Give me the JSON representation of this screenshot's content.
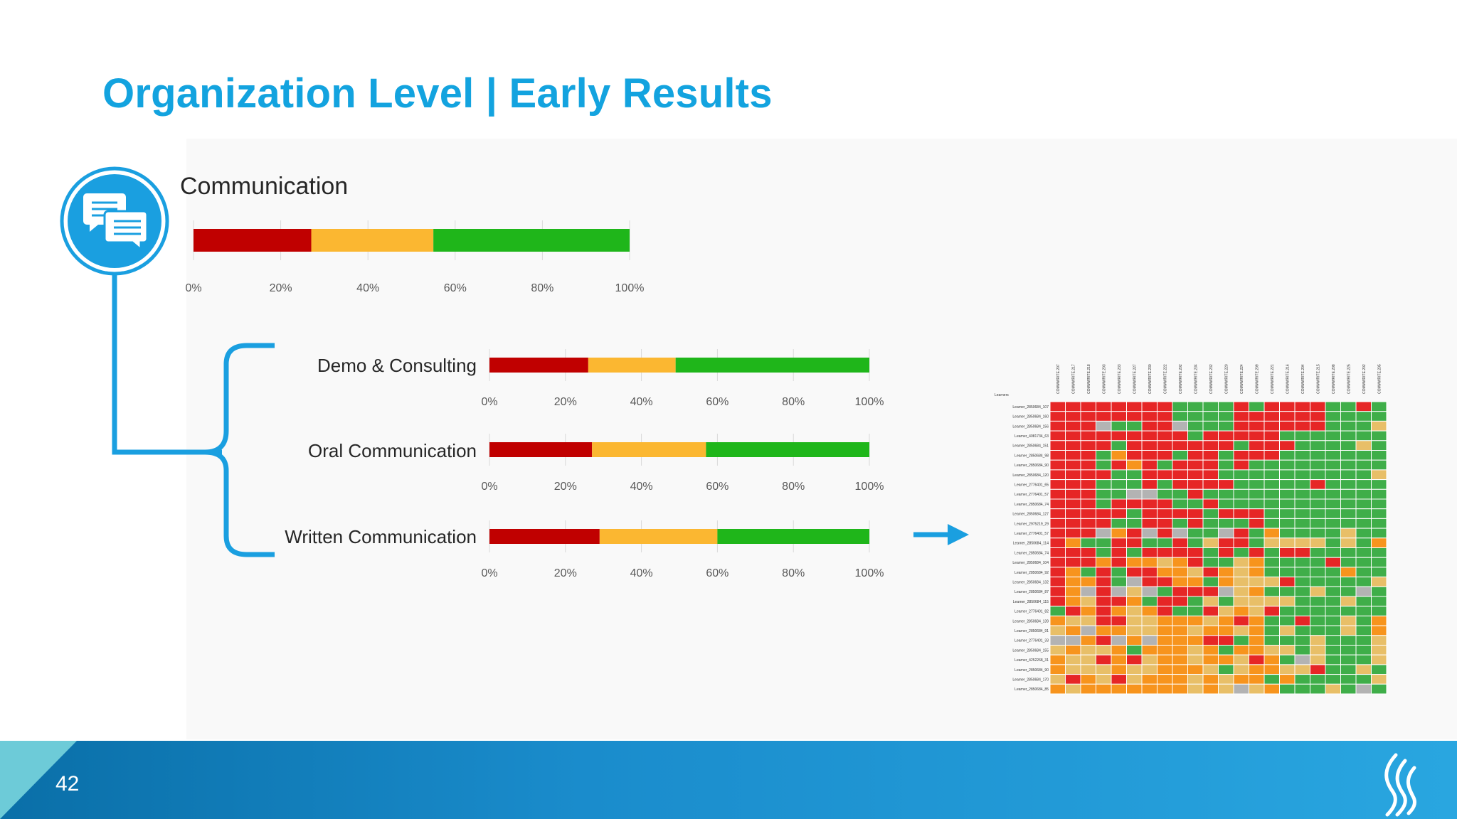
{
  "slide": {
    "title": "Organization Level | Early Results",
    "page_number": "42",
    "colors": {
      "title": "#13a3df",
      "red": "#c00000",
      "amber": "#fbb731",
      "green": "#1fb61a",
      "accent": "#1a9fe0"
    }
  },
  "icons": {
    "communication": "chat-bubbles-icon",
    "arrow": "right-arrow-icon",
    "logo": "flame-logo-icon"
  },
  "chart_data": [
    {
      "type": "bar",
      "orientation": "horizontal-stacked",
      "title": "Communication",
      "series": [
        {
          "name": "red",
          "values": [
            27
          ]
        },
        {
          "name": "amber",
          "values": [
            28
          ]
        },
        {
          "name": "green",
          "values": [
            45
          ]
        }
      ],
      "xlim": [
        0,
        100
      ],
      "xticks": [
        "0%",
        "20%",
        "40%",
        "60%",
        "80%",
        "100%"
      ]
    },
    {
      "type": "bar",
      "orientation": "horizontal-stacked",
      "title": "Demo & Consulting",
      "series": [
        {
          "name": "red",
          "values": [
            26
          ]
        },
        {
          "name": "amber",
          "values": [
            23
          ]
        },
        {
          "name": "green",
          "values": [
            51
          ]
        }
      ],
      "xlim": [
        0,
        100
      ],
      "xticks": [
        "0%",
        "20%",
        "40%",
        "60%",
        "80%",
        "100%"
      ]
    },
    {
      "type": "bar",
      "orientation": "horizontal-stacked",
      "title": "Oral Communication",
      "series": [
        {
          "name": "red",
          "values": [
            27
          ]
        },
        {
          "name": "amber",
          "values": [
            30
          ]
        },
        {
          "name": "green",
          "values": [
            43
          ]
        }
      ],
      "xlim": [
        0,
        100
      ],
      "xticks": [
        "0%",
        "20%",
        "40%",
        "60%",
        "80%",
        "100%"
      ]
    },
    {
      "type": "bar",
      "orientation": "horizontal-stacked",
      "title": "Written Communication",
      "series": [
        {
          "name": "red",
          "values": [
            29
          ]
        },
        {
          "name": "amber",
          "values": [
            31
          ]
        },
        {
          "name": "green",
          "values": [
            40
          ]
        }
      ],
      "xlim": [
        0,
        100
      ],
      "xticks": [
        "0%",
        "20%",
        "40%",
        "60%",
        "80%",
        "100%"
      ]
    },
    {
      "type": "heatmap",
      "row_header": "Learners",
      "rows": [
        "Learner_2850684_107",
        "Learner_2850684_160",
        "Learner_2850684_156",
        "Learner_4081734_63",
        "Learner_2850684_151",
        "Learner_2850684_98",
        "Learner_2850684_90",
        "Learner_2850684_120",
        "Learner_2776401_65",
        "Learner_2776401_57",
        "Learner_2850684_74",
        "Learner_2850684_127",
        "Learner_2975219_29",
        "Learner_2776401_57",
        "Learner_2850684_114",
        "Learner_2850684_74",
        "Learner_2850684_104",
        "Learner_2850684_92",
        "Learner_2850684_132",
        "Learner_2850684_87",
        "Learner_2850684_115",
        "Learner_2776401_82",
        "Learner_2850684_139",
        "Learner_2850684_91",
        "Learner_2776401_33",
        "Learner_2850684_155",
        "Learner_4252268_31",
        "Learner_2850684_90",
        "Learner_2850684_170",
        "Learner_2850684_85"
      ],
      "columns": [
        "COMMWRITE.207",
        "COMMWRITE.217",
        "COMMWRITE.218",
        "COMMWRITE.203",
        "COMMWRITE.233",
        "COMMWRITE.227",
        "COMMWRITE.230",
        "COMMWRITE.222",
        "COMMWRITE.202",
        "COMMWRITE.234",
        "COMMWRITE.232",
        "COMMWRITE.220",
        "COMMWRITE.224",
        "COMMWRITE.209",
        "COMMWRITE.221",
        "COMMWRITE.216",
        "COMMWRITE.204",
        "COMMWRITE.215",
        "COMMWRITE.208",
        "COMMWRITE.225",
        "COMMWRITE.202",
        "COMMWRITE.205"
      ],
      "legend": {
        "R": "#e62626",
        "O": "#f7941d",
        "Y": "#e8bf68",
        "G": "#3fae49",
        "S": "#b3b3b3"
      },
      "cells": [
        "RRRRRRRRGGGGRGRRRRGGRG",
        "RRRRRRRRGGGGRRRRRRGGGG",
        "RRRSGGRRSGGGRRRRRRGGGY",
        "RRRRRRRRRGRRRRRGGGGGGG",
        "RRRRGRRRRRRRGRRRGGGGYG",
        "RRRGORRRGRRGRRRGGGGGGG",
        "RRRGRORGRRRGRGGGGGGGGG",
        "RRRRGGRRRRRGGGGGGGGGGY",
        "RRRGGGRGRRRRGGGGGRGGGG",
        "RRRGGSSGGRGGGGGGGGGGGG",
        "RRRGRRRRGGRGGGGGGGGGGG",
        "RRRRRGRRRRGRRRGGGGGGGG",
        "RRRRGGRRGRGGGRGGGGGGGG",
        "RRRSORSRSGGSRGOGGGGYGG",
        "ROGGRRGGRGYRRGYYYYGYGO",
        "RRRGRGRRRRGRGRGRRGGGGG",
        "RRROROOYORGGYOGGGGRGGG",
        "ROGRGRROOYROYOGGGGGOGG",
        "ROORGSRROOGOYYYRGGGGGY",
        "ROSRSYSGRRRSYOGGGYGGSG",
        "ROYRROGRRGYGYYYYGGGYGG",
        "GROROYORGGRYOYRGGGGGGG",
        "OYYRRYYOOOYOROGGRGGYGO",
        "YOSOOYYOOYOOYOGYGGGYGO",
        "SSORSOSOOORRGOGGGYGGGY",
        "YOYYOGOOOYOGOOYYGYGGGY",
        "OYYRORYOOYOOYROGSYGGGY",
        "OYYYOYYOOOYGYOOYYRGGYG",
        "YROYRYOOOYOYOOGOGGGGGY",
        "OYOOOOOOOYOYSYOGGGYGSG"
      ]
    }
  ]
}
